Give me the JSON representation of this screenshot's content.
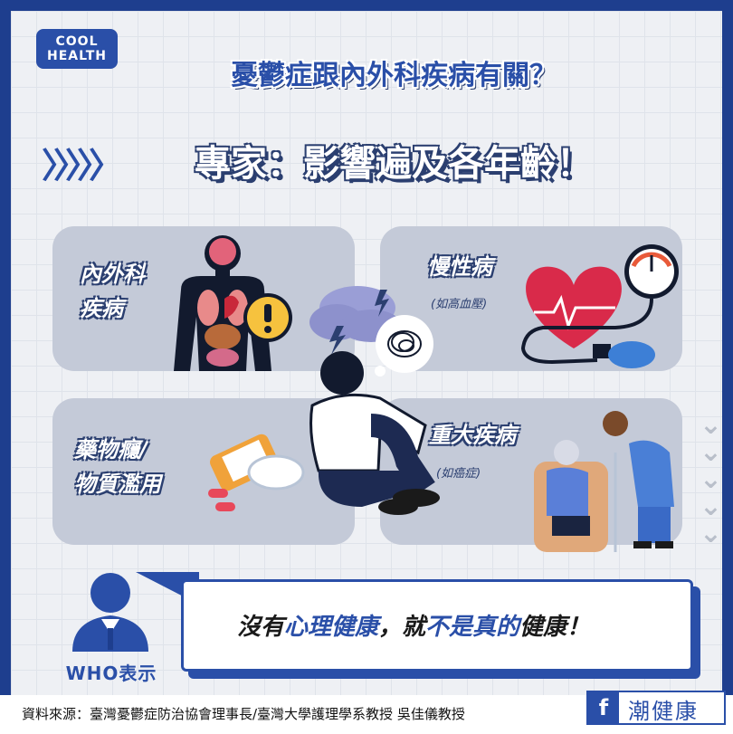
{
  "logo": {
    "line1": "COOL",
    "line2": "HEALTH"
  },
  "title": "憂鬱症跟內外科疾病有關？",
  "chevrons": "〉〉〉〉〉",
  "subtitle": "專家：影響遍及各年齡！",
  "cards": [
    {
      "label_line1": "內外科",
      "label_line2": "疾病"
    },
    {
      "label_line1": "慢性病",
      "sub": "(如高血壓)"
    },
    {
      "label_line1": "藥物癮/",
      "label_line2": "物質濫用"
    },
    {
      "label_line1": "重大疾病",
      "sub": "(如癌症)"
    }
  ],
  "quote": {
    "part1": "沒有",
    "highlight1": "心理健康",
    "part2": "，就",
    "highlight2": "不是真的",
    "part3": "健康！"
  },
  "who_label": "WHO表示",
  "footer": {
    "source": "資料來源：臺灣憂鬱症防治協會理事長/臺灣大學護理學系教授 吳佳儀教授",
    "fb_letter": "f",
    "brand": "潮健康"
  },
  "colors": {
    "primary": "#2a4fa8",
    "navy": "#1e3e8e",
    "card": "#c4cad8",
    "background": "#eef0f4"
  },
  "icons": [
    "human-anatomy-icon",
    "warning-icon",
    "storm-cloud-icon",
    "tangled-thought-icon",
    "heart-blood-pressure-icon",
    "sad-person-icon",
    "pill-bottle-icon",
    "patient-nurse-icon",
    "doctor-avatar-icon",
    "facebook-icon"
  ]
}
